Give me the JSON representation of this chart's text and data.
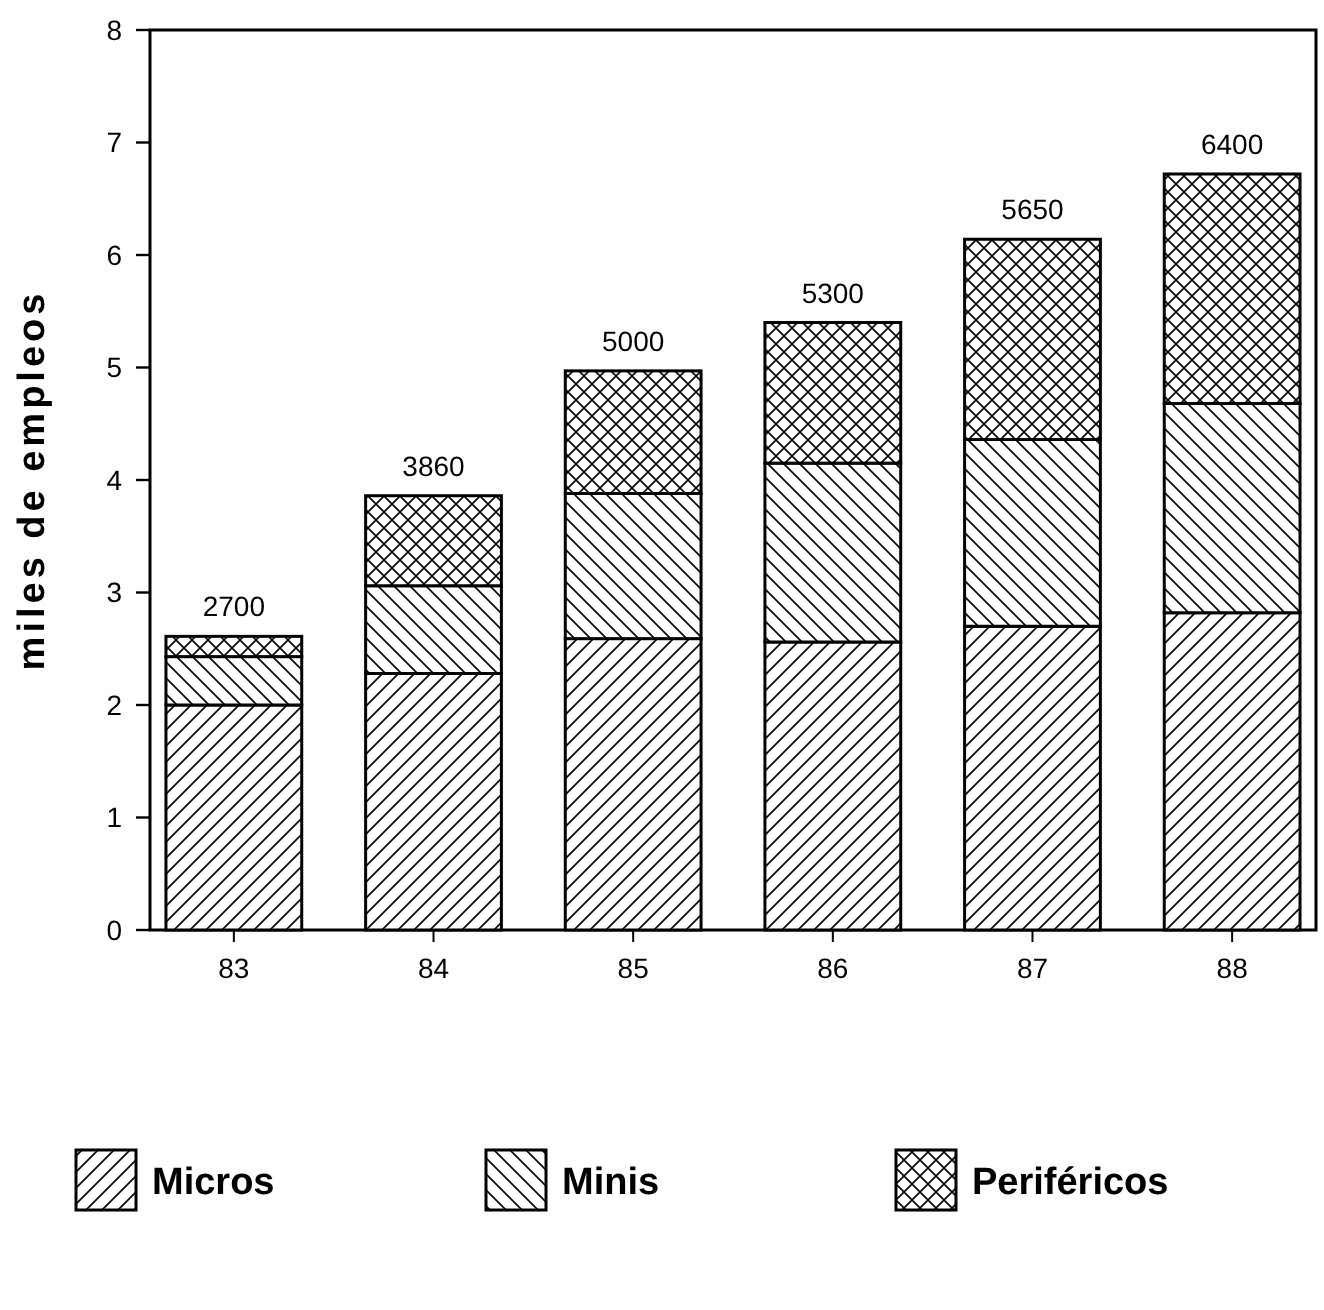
{
  "chart_data": {
    "type": "bar",
    "stacked": true,
    "ylabel": "miles de empleos",
    "categories": [
      "83",
      "84",
      "85",
      "86",
      "87",
      "88"
    ],
    "series": [
      {
        "name": "Micros",
        "color": "#000000",
        "values": [
          2.0,
          2.28,
          2.59,
          2.56,
          2.7,
          2.82
        ]
      },
      {
        "name": "Minis",
        "color": "#000000",
        "values": [
          0.43,
          0.78,
          1.29,
          1.59,
          1.66,
          1.86
        ]
      },
      {
        "name": "Periféricos",
        "color": "#000000",
        "values": [
          0.18,
          0.8,
          1.09,
          1.25,
          1.78,
          2.04
        ]
      }
    ],
    "annotations": [
      {
        "text": "2700",
        "x": "83",
        "y": 2.61
      },
      {
        "text": "3860",
        "x": "84",
        "y": 3.86
      },
      {
        "text": "5000",
        "x": "85",
        "y": 4.97
      },
      {
        "text": "5300",
        "x": "86",
        "y": 5.4
      },
      {
        "text": "5650",
        "x": "87",
        "y": 6.14
      },
      {
        "text": "6400",
        "x": "88",
        "y": 6.72
      }
    ],
    "ylim": [
      0,
      8
    ],
    "yticks": [
      0,
      1,
      2,
      3,
      4,
      5,
      6,
      7,
      8
    ],
    "grid": false,
    "legend": "bottom"
  }
}
